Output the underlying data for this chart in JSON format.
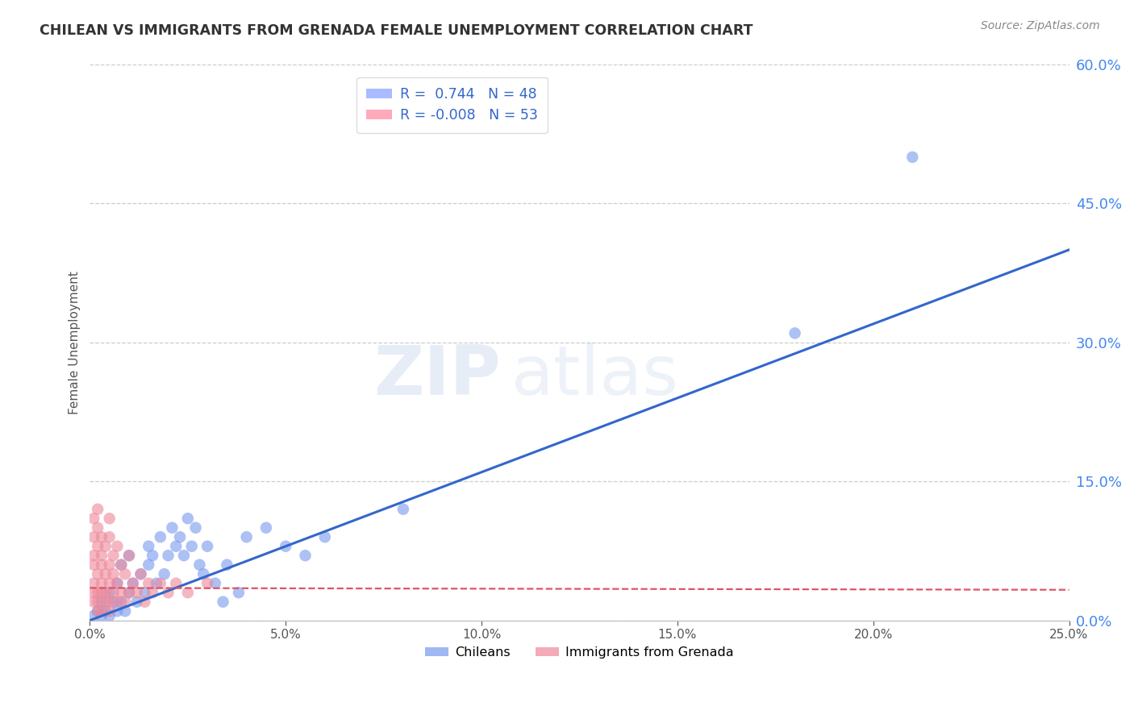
{
  "title": "CHILEAN VS IMMIGRANTS FROM GRENADA FEMALE UNEMPLOYMENT CORRELATION CHART",
  "source": "Source: ZipAtlas.com",
  "ylabel": "Female Unemployment",
  "xlim": [
    0.0,
    0.25
  ],
  "ylim": [
    0.0,
    0.6
  ],
  "xticks": [
    0.0,
    0.05,
    0.1,
    0.15,
    0.2,
    0.25
  ],
  "yticks": [
    0.0,
    0.15,
    0.3,
    0.45,
    0.6
  ],
  "scatter_color_chilean": "#7799ee",
  "scatter_color_grenada": "#ee8899",
  "line_color_chilean": "#3366cc",
  "line_color_grenada": "#dd5566",
  "blue_line_x": [
    0.0,
    0.25
  ],
  "blue_line_y": [
    0.0,
    0.4
  ],
  "pink_line_x": [
    0.0,
    0.25
  ],
  "pink_line_y": [
    0.035,
    0.033
  ],
  "watermark_part1": "ZIP",
  "watermark_part2": "atlas",
  "background_color": "#ffffff",
  "title_color": "#333333",
  "right_axis_color": "#4488ee",
  "grid_color": "#cccccc",
  "chilean_scatter": [
    [
      0.001,
      0.005
    ],
    [
      0.002,
      0.01
    ],
    [
      0.003,
      0.02
    ],
    [
      0.003,
      0.005
    ],
    [
      0.004,
      0.01
    ],
    [
      0.005,
      0.03
    ],
    [
      0.005,
      0.005
    ],
    [
      0.006,
      0.02
    ],
    [
      0.007,
      0.01
    ],
    [
      0.007,
      0.04
    ],
    [
      0.008,
      0.02
    ],
    [
      0.008,
      0.06
    ],
    [
      0.009,
      0.01
    ],
    [
      0.01,
      0.03
    ],
    [
      0.01,
      0.07
    ],
    [
      0.011,
      0.04
    ],
    [
      0.012,
      0.02
    ],
    [
      0.013,
      0.05
    ],
    [
      0.014,
      0.03
    ],
    [
      0.015,
      0.06
    ],
    [
      0.015,
      0.08
    ],
    [
      0.016,
      0.07
    ],
    [
      0.017,
      0.04
    ],
    [
      0.018,
      0.09
    ],
    [
      0.019,
      0.05
    ],
    [
      0.02,
      0.07
    ],
    [
      0.021,
      0.1
    ],
    [
      0.022,
      0.08
    ],
    [
      0.023,
      0.09
    ],
    [
      0.024,
      0.07
    ],
    [
      0.025,
      0.11
    ],
    [
      0.026,
      0.08
    ],
    [
      0.027,
      0.1
    ],
    [
      0.028,
      0.06
    ],
    [
      0.029,
      0.05
    ],
    [
      0.03,
      0.08
    ],
    [
      0.032,
      0.04
    ],
    [
      0.034,
      0.02
    ],
    [
      0.035,
      0.06
    ],
    [
      0.038,
      0.03
    ],
    [
      0.04,
      0.09
    ],
    [
      0.045,
      0.1
    ],
    [
      0.05,
      0.08
    ],
    [
      0.055,
      0.07
    ],
    [
      0.06,
      0.09
    ],
    [
      0.08,
      0.12
    ],
    [
      0.21,
      0.5
    ],
    [
      0.18,
      0.31
    ]
  ],
  "grenada_scatter": [
    [
      0.001,
      0.02
    ],
    [
      0.001,
      0.04
    ],
    [
      0.001,
      0.07
    ],
    [
      0.001,
      0.09
    ],
    [
      0.001,
      0.11
    ],
    [
      0.001,
      0.03
    ],
    [
      0.001,
      0.06
    ],
    [
      0.002,
      0.01
    ],
    [
      0.002,
      0.03
    ],
    [
      0.002,
      0.05
    ],
    [
      0.002,
      0.08
    ],
    [
      0.002,
      0.1
    ],
    [
      0.002,
      0.12
    ],
    [
      0.002,
      0.02
    ],
    [
      0.003,
      0.01
    ],
    [
      0.003,
      0.04
    ],
    [
      0.003,
      0.06
    ],
    [
      0.003,
      0.09
    ],
    [
      0.003,
      0.03
    ],
    [
      0.003,
      0.07
    ],
    [
      0.004,
      0.02
    ],
    [
      0.004,
      0.05
    ],
    [
      0.004,
      0.08
    ],
    [
      0.004,
      0.03
    ],
    [
      0.005,
      0.01
    ],
    [
      0.005,
      0.04
    ],
    [
      0.005,
      0.06
    ],
    [
      0.005,
      0.09
    ],
    [
      0.005,
      0.11
    ],
    [
      0.005,
      0.02
    ],
    [
      0.006,
      0.03
    ],
    [
      0.006,
      0.05
    ],
    [
      0.006,
      0.07
    ],
    [
      0.007,
      0.02
    ],
    [
      0.007,
      0.04
    ],
    [
      0.007,
      0.08
    ],
    [
      0.008,
      0.03
    ],
    [
      0.008,
      0.06
    ],
    [
      0.009,
      0.02
    ],
    [
      0.009,
      0.05
    ],
    [
      0.01,
      0.03
    ],
    [
      0.01,
      0.07
    ],
    [
      0.011,
      0.04
    ],
    [
      0.012,
      0.03
    ],
    [
      0.013,
      0.05
    ],
    [
      0.014,
      0.02
    ],
    [
      0.015,
      0.04
    ],
    [
      0.016,
      0.03
    ],
    [
      0.018,
      0.04
    ],
    [
      0.02,
      0.03
    ],
    [
      0.022,
      0.04
    ],
    [
      0.025,
      0.03
    ],
    [
      0.03,
      0.04
    ]
  ]
}
